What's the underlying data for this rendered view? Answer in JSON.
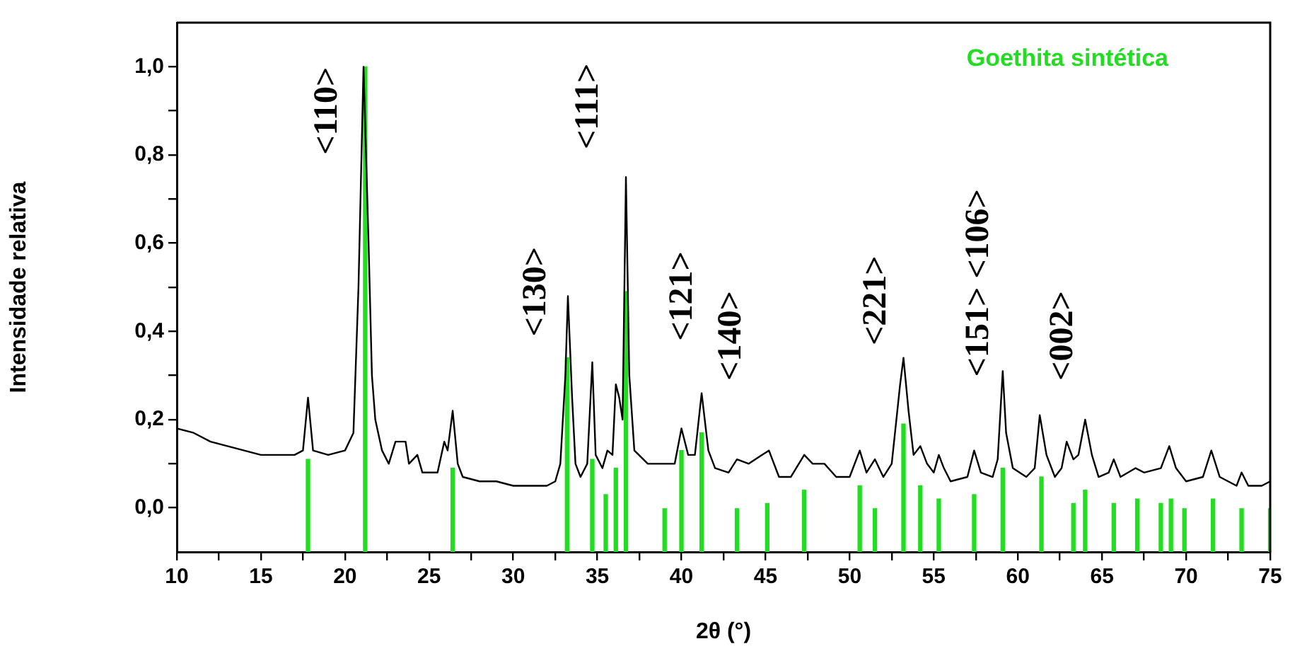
{
  "chart_data": {
    "type": "line",
    "xlabel": "2θ (°)",
    "ylabel": "Intensidade relativa",
    "xlim": [
      10,
      75
    ],
    "ylim": [
      -0.1,
      1.1
    ],
    "xticks": [
      10,
      {
        "value": 12.5,
        "label": null
      },
      15,
      {
        "value": 17.5,
        "label": null
      },
      20,
      {
        "value": 22.5,
        "label": null
      },
      25,
      {
        "value": 27.5,
        "label": null
      },
      30,
      {
        "value": 32.5,
        "label": null
      },
      35,
      {
        "value": 37.5,
        "label": null
      },
      40,
      {
        "value": 42.5,
        "label": null
      },
      45,
      {
        "value": 47.5,
        "label": null
      },
      50,
      {
        "value": 52.5,
        "label": null
      },
      55,
      {
        "value": 57.5,
        "label": null
      },
      60,
      {
        "value": 62.5,
        "label": null
      },
      65,
      {
        "value": 67.5,
        "label": null
      },
      70,
      {
        "value": 72.5,
        "label": null
      },
      75
    ],
    "yticks": [
      {
        "value": 0,
        "label": "0,0"
      },
      {
        "value": 0.1,
        "label": null
      },
      {
        "value": 0.2,
        "label": "0,2"
      },
      {
        "value": 0.3,
        "label": null
      },
      {
        "value": 0.4,
        "label": "0,4"
      },
      {
        "value": 0.5,
        "label": null
      },
      {
        "value": 0.6,
        "label": "0,6"
      },
      {
        "value": 0.7,
        "label": null
      },
      {
        "value": 0.8,
        "label": "0,8"
      },
      {
        "value": 0.9,
        "label": null
      },
      {
        "value": 1.0,
        "label": "1,0"
      }
    ],
    "grid": false,
    "marker": "none",
    "line_style": "solid",
    "series": [
      {
        "color": "#000000",
        "x": [
          10,
          11,
          12,
          13,
          14,
          15,
          16,
          17,
          17.5,
          17.8,
          18.1,
          19,
          20,
          20.5,
          20.8,
          21.1,
          21.4,
          21.6,
          21.8,
          22.2,
          22.6,
          23,
          23.6,
          23.8,
          24.3,
          24.6,
          25.5,
          25.9,
          26.1,
          26.4,
          26.7,
          27,
          28,
          29,
          30,
          31,
          32,
          32.5,
          32.8,
          33.1,
          33.25,
          33.5,
          33.7,
          34,
          34.4,
          34.7,
          34.9,
          35.3,
          35.6,
          35.9,
          36.1,
          36.3,
          36.5,
          36.7,
          36.9,
          37.2,
          38,
          39,
          39.6,
          40,
          40.4,
          40.8,
          41.2,
          41.6,
          42,
          42.8,
          43.3,
          44,
          44.8,
          45.2,
          45.8,
          46.5,
          47.3,
          47.8,
          48.5,
          49.2,
          50,
          50.6,
          51,
          51.5,
          52,
          52.5,
          53,
          53.2,
          53.5,
          53.8,
          54.2,
          54.6,
          55,
          55.3,
          55.6,
          56,
          57,
          57.4,
          57.8,
          58.5,
          58.8,
          59.1,
          59.3,
          59.7,
          60.5,
          61,
          61.3,
          61.7,
          62.2,
          62.6,
          62.9,
          63.3,
          63.6,
          64,
          64.4,
          64.8,
          65.4,
          65.7,
          66.1,
          67,
          67.5,
          68.5,
          69,
          69.4,
          70,
          71,
          71.5,
          72,
          73,
          73.3,
          73.7,
          74.5,
          75
        ],
        "values": [
          0.18,
          0.17,
          0.15,
          0.14,
          0.13,
          0.12,
          0.12,
          0.12,
          0.13,
          0.25,
          0.13,
          0.12,
          0.13,
          0.17,
          0.5,
          1.0,
          0.6,
          0.3,
          0.2,
          0.13,
          0.1,
          0.15,
          0.15,
          0.1,
          0.12,
          0.08,
          0.08,
          0.15,
          0.13,
          0.22,
          0.1,
          0.07,
          0.06,
          0.06,
          0.05,
          0.05,
          0.05,
          0.06,
          0.1,
          0.3,
          0.48,
          0.25,
          0.1,
          0.07,
          0.1,
          0.33,
          0.12,
          0.09,
          0.13,
          0.12,
          0.28,
          0.25,
          0.2,
          0.75,
          0.3,
          0.13,
          0.1,
          0.1,
          0.1,
          0.18,
          0.12,
          0.12,
          0.26,
          0.13,
          0.09,
          0.08,
          0.11,
          0.1,
          0.12,
          0.13,
          0.07,
          0.07,
          0.12,
          0.1,
          0.1,
          0.07,
          0.07,
          0.13,
          0.08,
          0.11,
          0.07,
          0.1,
          0.28,
          0.34,
          0.22,
          0.12,
          0.14,
          0.1,
          0.08,
          0.12,
          0.09,
          0.06,
          0.07,
          0.13,
          0.08,
          0.07,
          0.11,
          0.31,
          0.17,
          0.09,
          0.07,
          0.09,
          0.21,
          0.12,
          0.07,
          0.09,
          0.15,
          0.11,
          0.12,
          0.2,
          0.12,
          0.07,
          0.08,
          0.11,
          0.07,
          0.09,
          0.08,
          0.09,
          0.14,
          0.09,
          0.06,
          0.07,
          0.13,
          0.07,
          0.05,
          0.08,
          0.05,
          0.05,
          0.06
        ]
      },
      {
        "type": "bar",
        "name": "Goethita sintética",
        "color": "#22dd22",
        "x": [
          17.8,
          21.2,
          26.4,
          33.2,
          34.7,
          35.5,
          36.1,
          36.7,
          39.0,
          40.0,
          41.2,
          43.3,
          45.1,
          47.3,
          50.6,
          51.5,
          53.2,
          54.2,
          55.3,
          57.4,
          59.1,
          61.4,
          63.3,
          64.0,
          65.7,
          67.1,
          68.5,
          69.1,
          69.9,
          71.6,
          73.3,
          75.0
        ],
        "base": [
          -0.1,
          -0.1,
          -0.1,
          -0.1,
          -0.1,
          -0.1,
          -0.1,
          -0.1,
          -0.1,
          -0.1,
          -0.1,
          -0.1,
          -0.1,
          -0.1,
          -0.1,
          -0.1,
          -0.1,
          -0.1,
          -0.1,
          -0.1,
          -0.1,
          -0.1,
          -0.1,
          -0.1,
          -0.1,
          -0.1,
          -0.1,
          -0.1,
          -0.1,
          -0.1,
          -0.1,
          -0.1
        ],
        "values": [
          0.21,
          1.1,
          0.19,
          0.44,
          0.21,
          0.13,
          0.19,
          0.59,
          0.1,
          0.23,
          0.27,
          0.1,
          0.11,
          0.14,
          0.15,
          0.1,
          0.29,
          0.15,
          0.12,
          0.13,
          0.19,
          0.17,
          0.11,
          0.14,
          0.11,
          0.12,
          0.11,
          0.12,
          0.1,
          0.12,
          0.1,
          0.1
        ]
      }
    ],
    "annotations": [
      "<110>",
      "<130>",
      "<111>",
      "<121>",
      "<140>",
      "<221>",
      "<151> <106>",
      "<002>"
    ]
  }
}
